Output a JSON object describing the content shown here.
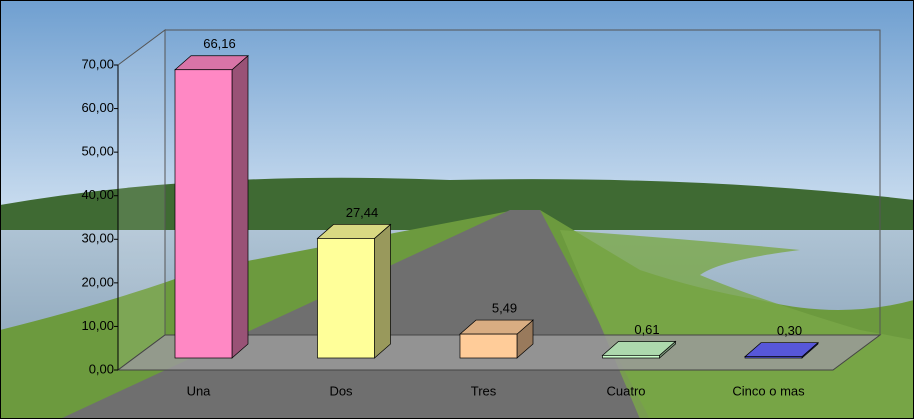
{
  "chart_data": {
    "type": "bar3d",
    "categories": [
      "Una",
      "Dos",
      "Tres",
      "Cuatro",
      "Cinco o mas"
    ],
    "values": [
      66.16,
      27.44,
      5.49,
      0.61,
      0.3
    ],
    "value_labels": [
      "66,16",
      "27,44",
      "5,49",
      "0,61",
      "0,30"
    ],
    "colors": [
      "#ff88c4",
      "#ffff99",
      "#ffcc99",
      "#ccffcc",
      "#6666ff"
    ],
    "ylim": [
      0,
      70
    ],
    "yticks": [
      {
        "value": 0,
        "label": "0,00"
      },
      {
        "value": 10,
        "label": "10,00"
      },
      {
        "value": 20,
        "label": "20,00"
      },
      {
        "value": 30,
        "label": "30,00"
      },
      {
        "value": 40,
        "label": "40,00"
      },
      {
        "value": 50,
        "label": "50,00"
      },
      {
        "value": 60,
        "label": "60,00"
      },
      {
        "value": 70,
        "label": "70,00"
      }
    ],
    "grid": false
  }
}
